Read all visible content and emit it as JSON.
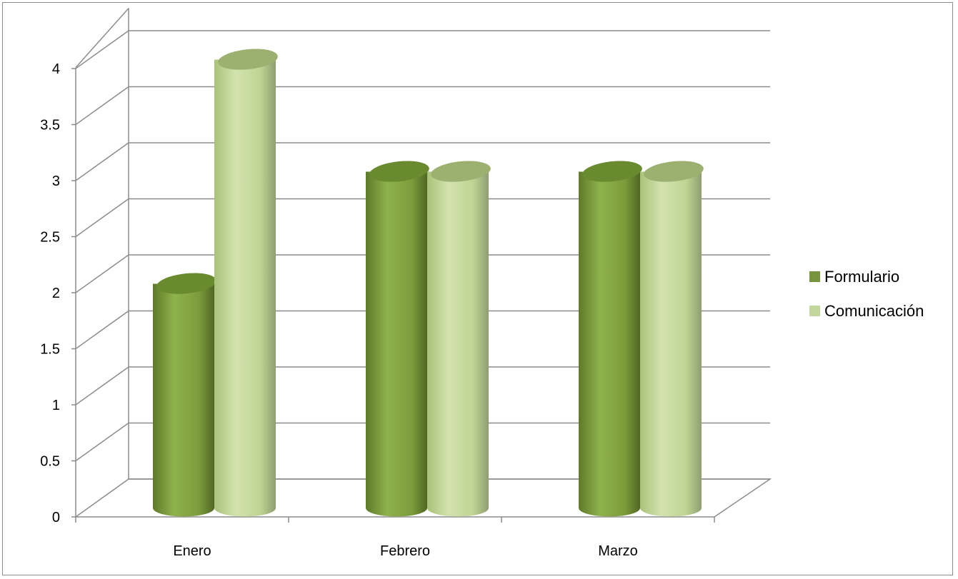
{
  "chart_data": {
    "type": "bar",
    "variant": "3d-cylinder",
    "title": "",
    "xlabel": "",
    "ylabel": "",
    "categories": [
      "Enero",
      "Febrero",
      "Marzo"
    ],
    "series": [
      {
        "name": "Formulario",
        "values": [
          2,
          3,
          3
        ],
        "color": "#77933c"
      },
      {
        "name": "Comunicación",
        "values": [
          4,
          3,
          3
        ],
        "color": "#c3d69b"
      }
    ],
    "ylim": [
      0,
      4
    ],
    "y_ticks": [
      "0",
      "0.5",
      "1",
      "1.5",
      "2",
      "2.5",
      "3",
      "3.5",
      "4"
    ],
    "grid": true,
    "legend_position": "right"
  }
}
